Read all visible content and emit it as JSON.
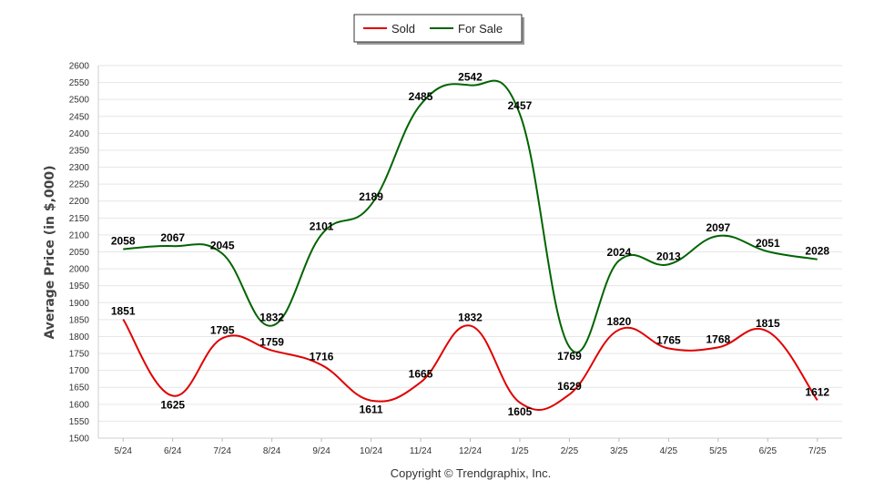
{
  "chart_data": {
    "type": "line",
    "categories": [
      "5/24",
      "6/24",
      "7/24",
      "8/24",
      "9/24",
      "10/24",
      "11/24",
      "12/24",
      "1/25",
      "2/25",
      "3/25",
      "4/25",
      "5/25",
      "6/25",
      "7/25"
    ],
    "series": [
      {
        "name": "Sold",
        "color": "#e00000",
        "values": [
          1851,
          1625,
          1795,
          1759,
          1716,
          1611,
          1665,
          1832,
          1605,
          1629,
          1820,
          1765,
          1768,
          1815,
          1612
        ]
      },
      {
        "name": "For Sale",
        "color": "#006400",
        "values": [
          2058,
          2067,
          2045,
          1832,
          2101,
          2189,
          2485,
          2542,
          2457,
          1769,
          2024,
          2013,
          2097,
          2051,
          2028
        ]
      }
    ],
    "ylabel": "Average Price (in $,000)",
    "xlabel": "",
    "ylim": [
      1500,
      2600
    ],
    "yticks": [
      1500,
      1550,
      1600,
      1650,
      1700,
      1750,
      1800,
      1850,
      1900,
      1950,
      2000,
      2050,
      2100,
      2150,
      2200,
      2250,
      2300,
      2350,
      2400,
      2450,
      2500,
      2550,
      2600
    ],
    "grid": true,
    "legend_position": "top-center"
  },
  "footer": {
    "copyright": "Copyright © Trendgraphix, Inc."
  }
}
